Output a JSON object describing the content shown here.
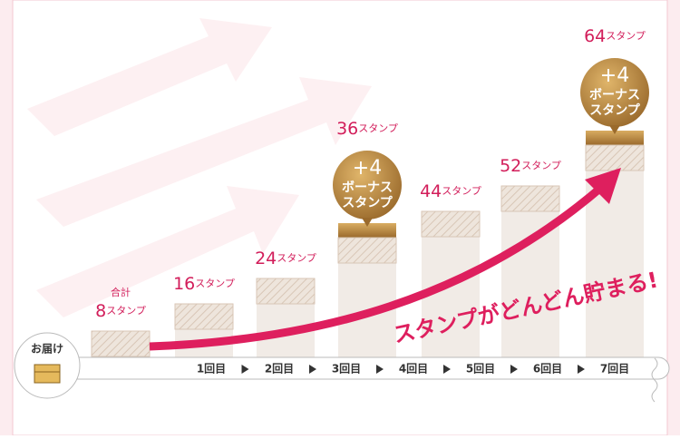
{
  "start": {
    "label": "お届け"
  },
  "steps": [
    {
      "prefix": "合計",
      "count": "8",
      "unit": "スタンプ"
    },
    {
      "count": "16",
      "unit": "スタンプ"
    },
    {
      "count": "24",
      "unit": "スタンプ"
    },
    {
      "count": "36",
      "unit": "スタンプ",
      "bonus": {
        "amount": "+4",
        "line1": "ボーナス",
        "line2": "スタンプ"
      }
    },
    {
      "count": "44",
      "unit": "スタンプ"
    },
    {
      "count": "52",
      "unit": "スタンプ"
    },
    {
      "count": "64",
      "unit": "スタンプ",
      "bonus": {
        "amount": "+4",
        "line1": "ボーナス",
        "line2": "スタンプ"
      }
    }
  ],
  "timeline": [
    "1回目",
    "2回目",
    "3回目",
    "4回目",
    "5回目",
    "6回目",
    "7回目"
  ],
  "slogan": "スタンプがどんどん貯まる!"
}
